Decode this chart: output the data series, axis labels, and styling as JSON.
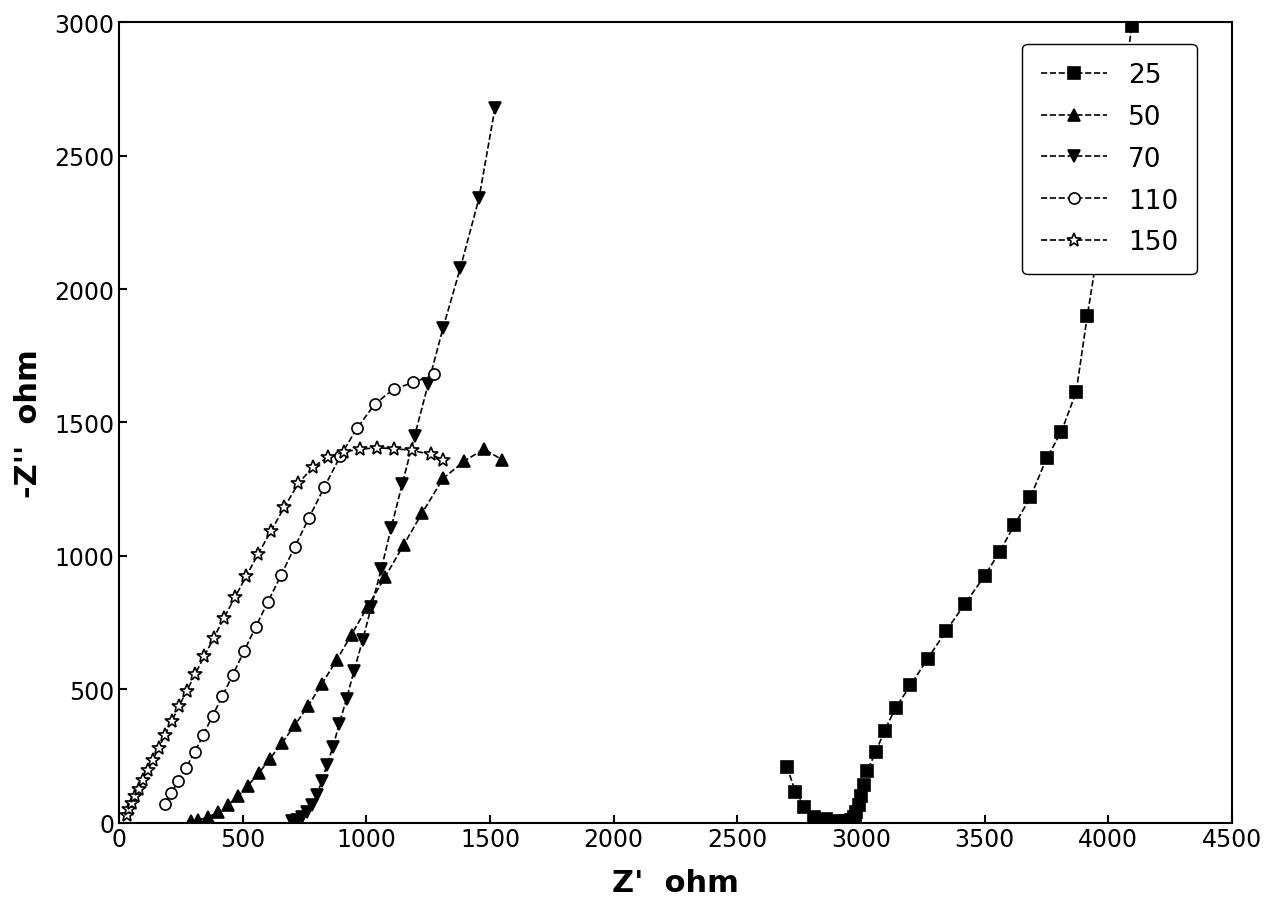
{
  "xlabel": "Z'  ohm",
  "ylabel": "-Z''  ohm",
  "xlim": [
    0,
    4500
  ],
  "ylim": [
    0,
    3000
  ],
  "xticks": [
    0,
    500,
    1000,
    1500,
    2000,
    2500,
    3000,
    3500,
    4000,
    4500
  ],
  "yticks": [
    0,
    500,
    1000,
    1500,
    2000,
    2500,
    3000
  ],
  "background_color": "#ffffff",
  "series": [
    {
      "label": "25",
      "marker": "s",
      "linestyle": "--",
      "color": "#000000",
      "filled": true,
      "markersize": 8,
      "zreal": [
        2700,
        2735,
        2770,
        2810,
        2860,
        2910,
        2940,
        2960,
        2970,
        2980,
        2990,
        3000,
        3010,
        3025,
        3060,
        3095,
        3140,
        3200,
        3270,
        3345,
        3420,
        3500,
        3560,
        3620,
        3685,
        3750,
        3810,
        3870,
        3915,
        3970,
        4030,
        4095
      ],
      "zimag": [
        210,
        115,
        58,
        22,
        12,
        5,
        5,
        10,
        20,
        40,
        65,
        100,
        140,
        195,
        265,
        345,
        430,
        515,
        615,
        720,
        820,
        925,
        1015,
        1115,
        1220,
        1365,
        1465,
        1615,
        1900,
        2220,
        2555,
        2985
      ]
    },
    {
      "label": "50",
      "marker": "^",
      "linestyle": "--",
      "color": "#000000",
      "filled": true,
      "markersize": 9,
      "zreal": [
        290,
        320,
        360,
        400,
        440,
        480,
        520,
        565,
        610,
        660,
        710,
        765,
        820,
        880,
        940,
        1005,
        1075,
        1150,
        1225,
        1310,
        1395,
        1475,
        1550
      ],
      "zimag": [
        5,
        10,
        20,
        40,
        65,
        98,
        138,
        185,
        240,
        300,
        365,
        438,
        520,
        610,
        705,
        810,
        920,
        1040,
        1160,
        1290,
        1355,
        1400,
        1360
      ]
    },
    {
      "label": "70",
      "marker": "v",
      "linestyle": "--",
      "color": "#000000",
      "filled": true,
      "markersize": 9,
      "zreal": [
        700,
        720,
        740,
        760,
        780,
        800,
        820,
        840,
        865,
        890,
        920,
        950,
        985,
        1020,
        1060,
        1100,
        1145,
        1195,
        1250,
        1310,
        1380,
        1455,
        1520
      ],
      "zimag": [
        5,
        10,
        20,
        40,
        65,
        105,
        155,
        215,
        285,
        370,
        465,
        570,
        685,
        810,
        950,
        1105,
        1270,
        1450,
        1645,
        1855,
        2080,
        2340,
        2680
      ]
    },
    {
      "label": "110",
      "marker": "o",
      "linestyle": "--",
      "color": "#000000",
      "filled": false,
      "markersize": 8,
      "zreal": [
        185,
        210,
        240,
        270,
        305,
        340,
        378,
        418,
        460,
        505,
        552,
        602,
        655,
        710,
        768,
        830,
        895,
        963,
        1035,
        1110,
        1190,
        1275
      ],
      "zimag": [
        70,
        110,
        155,
        205,
        263,
        328,
        400,
        475,
        555,
        642,
        733,
        828,
        928,
        1033,
        1143,
        1258,
        1375,
        1480,
        1570,
        1625,
        1650,
        1680
      ]
    },
    {
      "label": "150",
      "marker": "*",
      "linestyle": "--",
      "color": "#000000",
      "filled": false,
      "markersize": 10,
      "zreal": [
        30,
        40,
        52,
        65,
        80,
        97,
        116,
        137,
        160,
        185,
        213,
        242,
        274,
        308,
        344,
        383,
        424,
        468,
        514,
        563,
        614,
        668,
        725,
        784,
        845,
        909,
        975,
        1043,
        1113,
        1186,
        1260,
        1310
      ],
      "zimag": [
        30,
        50,
        72,
        98,
        127,
        160,
        196,
        236,
        280,
        328,
        380,
        436,
        495,
        557,
        623,
        693,
        767,
        844,
        924,
        1008,
        1093,
        1182,
        1272,
        1333,
        1370,
        1390,
        1400,
        1405,
        1402,
        1395,
        1380,
        1360
      ]
    }
  ]
}
